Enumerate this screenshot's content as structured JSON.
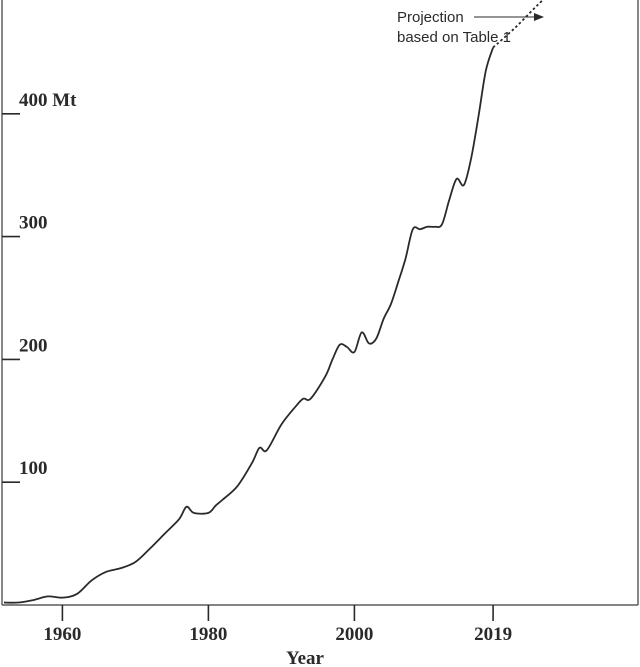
{
  "chart_data": {
    "type": "line",
    "title": "",
    "xlabel": "Year",
    "ylabel": "",
    "x_ticks": [
      {
        "value": 1960,
        "label": "1960"
      },
      {
        "value": 1980,
        "label": "1980"
      },
      {
        "value": 2000,
        "label": "2000"
      },
      {
        "value": 2019,
        "label": "2019"
      }
    ],
    "y_ticks": [
      {
        "value": 100,
        "label": "100"
      },
      {
        "value": 200,
        "label": "200"
      },
      {
        "value": 300,
        "label": "300"
      },
      {
        "value": 400,
        "label": "400 Mt"
      }
    ],
    "xlim": [
      1952,
      2038
    ],
    "ylim": [
      0,
      505
    ],
    "series": [
      {
        "style": "solid",
        "x": [
          1952,
          1954,
          1956,
          1958,
          1960,
          1962,
          1964,
          1966,
          1968,
          1970,
          1972,
          1974,
          1976,
          1977,
          1978,
          1980,
          1981,
          1982,
          1984,
          1986,
          1987,
          1988,
          1990,
          1992,
          1993,
          1994,
          1996,
          1997,
          1998,
          1999,
          2000,
          2001,
          2002,
          2003,
          2004,
          2005,
          2006,
          2007,
          2008,
          2009,
          2010,
          2011,
          2012,
          2013,
          2014,
          2015,
          2016,
          2017,
          2018,
          2019
        ],
        "y": [
          2,
          2,
          4,
          7,
          6,
          9,
          20,
          27,
          30,
          35,
          46,
          58,
          70,
          80,
          75,
          75,
          81,
          86,
          97,
          116,
          128,
          126,
          147,
          162,
          168,
          168,
          186,
          200,
          212,
          210,
          206,
          222,
          213,
          217,
          233,
          245,
          263,
          282,
          306,
          306,
          308,
          308,
          310,
          330,
          347,
          342,
          364,
          398,
          435,
          454
        ]
      },
      {
        "name": "Projection based on Table 1",
        "style": "dotted",
        "x": [
          2019,
          2022,
          2025,
          2028
        ],
        "y": [
          454,
          470,
          488,
          505
        ]
      }
    ],
    "annotations": [
      {
        "lines": [
          "Projection",
          "based on Table 1"
        ],
        "arrow": true
      }
    ],
    "grid": false,
    "legend": "none"
  },
  "colors": {
    "ink": "#2a2a2a",
    "axis": "#3a3a3a"
  }
}
